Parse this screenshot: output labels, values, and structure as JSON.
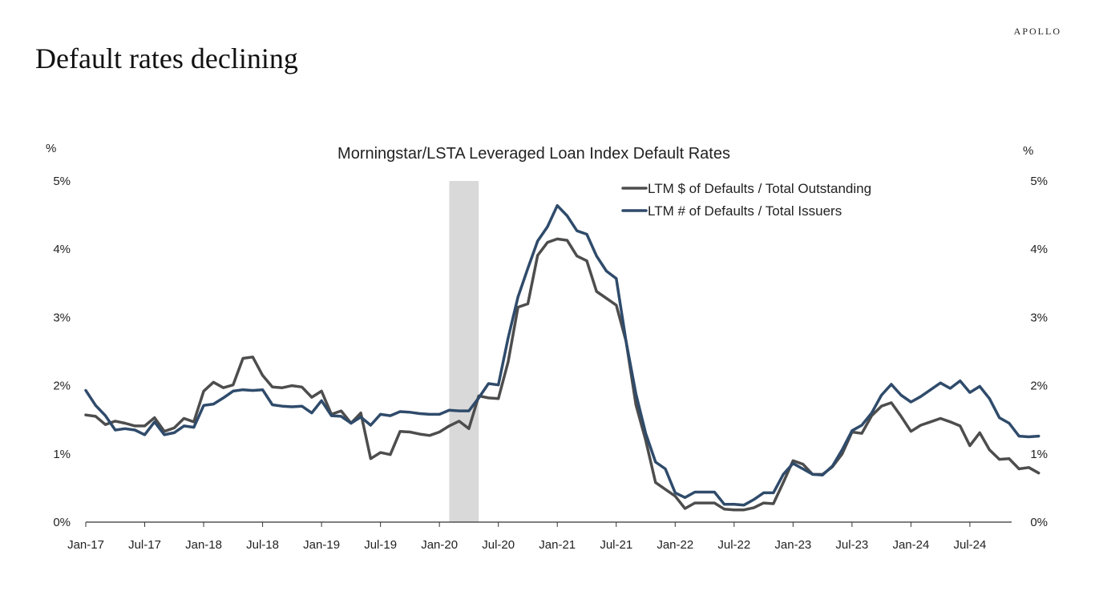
{
  "brand": "APOLLO",
  "page_title": "Default rates declining",
  "chart_data": {
    "type": "line",
    "title": "Morningstar/LSTA Leveraged Loan Index Default Rates",
    "y_unit_left": "%",
    "y_unit_right": "%",
    "ylim": [
      0,
      5
    ],
    "y_ticks": [
      0,
      1,
      2,
      3,
      4,
      5
    ],
    "y_tick_labels": [
      "0%",
      "1%",
      "2%",
      "3%",
      "4%",
      "5%"
    ],
    "x_tick_labels": [
      "Jan-17",
      "Jul-17",
      "Jan-18",
      "Jul-18",
      "Jan-19",
      "Jul-19",
      "Jan-20",
      "Jul-20",
      "Jan-21",
      "Jul-21",
      "Jan-22",
      "Jul-22",
      "Jan-23",
      "Jul-23",
      "Jan-24",
      "Jul-24"
    ],
    "x_start": "2017-01",
    "x_end": "2024-10",
    "recession_shade": {
      "start": "2020-02",
      "end": "2020-05"
    },
    "legend_position": "top-right",
    "grid": false,
    "colors": {
      "dollar": "#4d4d4d",
      "count": "#2f4b6b",
      "shade": "#d9d9d9"
    },
    "series": [
      {
        "name": "LTM $ of Defaults / Total Outstanding",
        "color": "#4d4d4d",
        "values": [
          1.57,
          1.55,
          1.43,
          1.48,
          1.45,
          1.41,
          1.41,
          1.53,
          1.33,
          1.38,
          1.52,
          1.47,
          1.92,
          2.05,
          1.97,
          2.01,
          2.4,
          2.42,
          2.15,
          1.98,
          1.97,
          2.0,
          1.98,
          1.83,
          1.92,
          1.58,
          1.63,
          1.45,
          1.6,
          0.93,
          1.02,
          0.99,
          1.33,
          1.32,
          1.29,
          1.27,
          1.32,
          1.41,
          1.48,
          1.37,
          1.85,
          1.82,
          1.81,
          2.35,
          3.15,
          3.2,
          3.91,
          4.1,
          4.15,
          4.13,
          3.9,
          3.83,
          3.38,
          3.28,
          3.18,
          2.65,
          1.72,
          1.2,
          0.58,
          0.48,
          0.38,
          0.2,
          0.28,
          0.28,
          0.28,
          0.19,
          0.18,
          0.18,
          0.21,
          0.28,
          0.27,
          0.58,
          0.9,
          0.85,
          0.7,
          0.7,
          0.81,
          1.0,
          1.32,
          1.3,
          1.56,
          1.7,
          1.75,
          1.55,
          1.33,
          1.42,
          1.47,
          1.52,
          1.47,
          1.41,
          1.12,
          1.31,
          1.06,
          0.92,
          0.93,
          0.78,
          0.8,
          0.72
        ]
      },
      {
        "name": "LTM # of Defaults / Total Issuers",
        "color": "#2f4b6b",
        "values": [
          1.93,
          1.71,
          1.56,
          1.35,
          1.37,
          1.35,
          1.28,
          1.47,
          1.28,
          1.31,
          1.41,
          1.39,
          1.71,
          1.73,
          1.82,
          1.92,
          1.94,
          1.93,
          1.94,
          1.72,
          1.7,
          1.69,
          1.7,
          1.6,
          1.78,
          1.56,
          1.55,
          1.45,
          1.54,
          1.42,
          1.58,
          1.56,
          1.62,
          1.61,
          1.59,
          1.58,
          1.58,
          1.64,
          1.63,
          1.63,
          1.82,
          2.03,
          2.01,
          2.7,
          3.3,
          3.72,
          4.12,
          4.33,
          4.64,
          4.49,
          4.27,
          4.22,
          3.9,
          3.68,
          3.57,
          2.65,
          1.88,
          1.3,
          0.88,
          0.78,
          0.43,
          0.36,
          0.44,
          0.44,
          0.44,
          0.26,
          0.26,
          0.25,
          0.33,
          0.43,
          0.43,
          0.7,
          0.86,
          0.78,
          0.7,
          0.69,
          0.82,
          1.06,
          1.34,
          1.42,
          1.6,
          1.86,
          2.02,
          1.86,
          1.76,
          1.84,
          1.94,
          2.04,
          1.96,
          2.07,
          1.9,
          1.99,
          1.81,
          1.53,
          1.45,
          1.26,
          1.25,
          1.26
        ]
      }
    ]
  }
}
